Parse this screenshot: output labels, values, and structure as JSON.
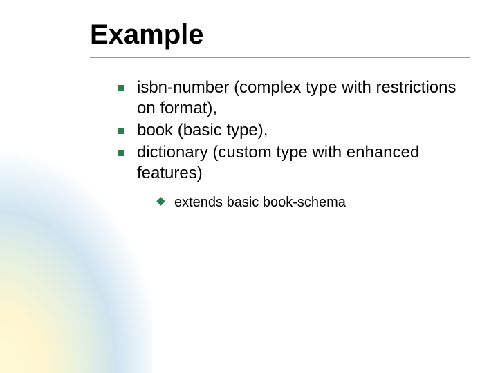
{
  "slide": {
    "title": "Example",
    "title_fontsize": 40,
    "title_color": "#000000",
    "divider_color": "#999999",
    "bullets": [
      {
        "text": "isbn-number (complex type with restrictions on format),"
      },
      {
        "text": "book (basic type),"
      },
      {
        "text": "dictionary (custom type with enhanced features)",
        "sub": [
          {
            "text": "extends basic book-schema"
          }
        ]
      }
    ],
    "bullet_fontsize": 24,
    "sub_bullet_fontsize": 20,
    "bullet_marker_color": "#2e7d4f",
    "background_color": "#ffffff",
    "gradient_colors": [
      "#fef9d6",
      "#e8f1e0",
      "#d0e4f0",
      "#ffffff"
    ]
  }
}
